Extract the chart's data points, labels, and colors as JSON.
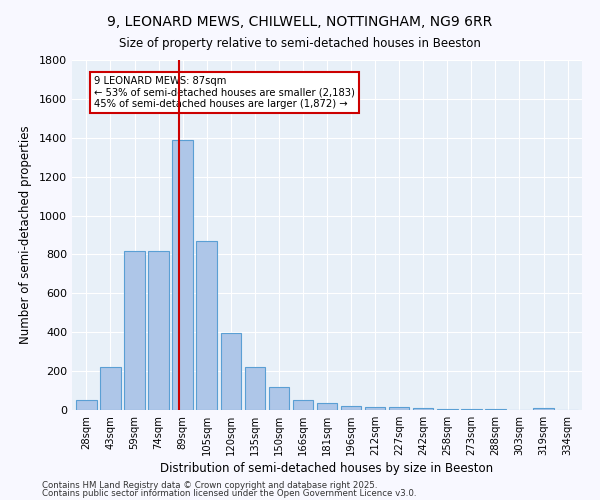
{
  "title": "9, LEONARD MEWS, CHILWELL, NOTTINGHAM, NG9 6RR",
  "subtitle": "Size of property relative to semi-detached houses in Beeston",
  "xlabel": "Distribution of semi-detached houses by size in Beeston",
  "ylabel": "Number of semi-detached properties",
  "categories": [
    "28sqm",
    "43sqm",
    "59sqm",
    "74sqm",
    "89sqm",
    "105sqm",
    "120sqm",
    "135sqm",
    "150sqm",
    "166sqm",
    "181sqm",
    "196sqm",
    "212sqm",
    "227sqm",
    "242sqm",
    "258sqm",
    "273sqm",
    "288sqm",
    "303sqm",
    "319sqm",
    "334sqm"
  ],
  "values": [
    50,
    220,
    820,
    820,
    1390,
    870,
    395,
    220,
    120,
    50,
    35,
    22,
    18,
    15,
    8,
    3,
    3,
    3,
    1,
    10,
    1
  ],
  "bar_color": "#aec6e8",
  "bar_edge_color": "#5a9fd4",
  "vline_color": "#cc0000",
  "annotation_text": "9 LEONARD MEWS: 87sqm\n← 53% of semi-detached houses are smaller (2,183)\n45% of semi-detached houses are larger (1,872) →",
  "annotation_box_color": "#ffffff",
  "annotation_box_edge_color": "#cc0000",
  "ylim": [
    0,
    1800
  ],
  "bg_color": "#e8f0f8",
  "fig_bg_color": "#f8f8ff",
  "grid_color": "#ffffff",
  "footer1": "Contains HM Land Registry data © Crown copyright and database right 2025.",
  "footer2": "Contains public sector information licensed under the Open Government Licence v3.0."
}
